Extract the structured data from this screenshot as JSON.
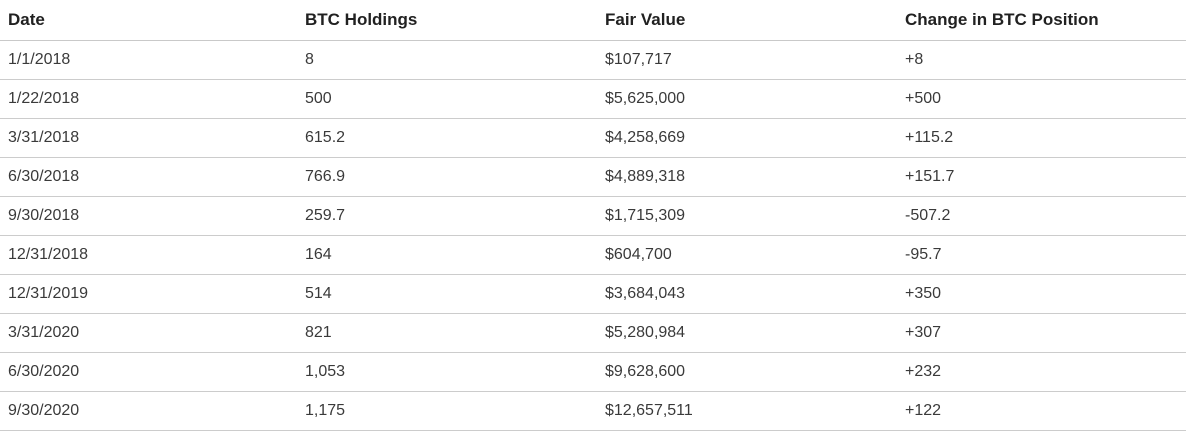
{
  "chart_data": {
    "type": "table",
    "columns": [
      "Date",
      "BTC Holdings",
      "Fair Value",
      "Change in BTC Position"
    ],
    "rows": [
      [
        "1/1/2018",
        "8",
        "$107,717",
        "+8"
      ],
      [
        "1/22/2018",
        "500",
        "$5,625,000",
        "+500"
      ],
      [
        "3/31/2018",
        "615.2",
        "$4,258,669",
        "+115.2"
      ],
      [
        "6/30/2018",
        "766.9",
        "$4,889,318",
        "+151.7"
      ],
      [
        "9/30/2018",
        "259.7",
        "$1,715,309",
        "-507.2"
      ],
      [
        "12/31/2018",
        "164",
        "$604,700",
        "-95.7"
      ],
      [
        "12/31/2019",
        "514",
        "$3,684,043",
        "+350"
      ],
      [
        "3/31/2020",
        "821",
        "$5,280,984",
        "+307"
      ],
      [
        "6/30/2020",
        "1,053",
        "$9,628,600",
        "+232"
      ],
      [
        "9/30/2020",
        "1,175",
        "$12,657,511",
        "+122"
      ]
    ]
  },
  "colors": {
    "background": "#ffffff",
    "header_text": "#212121",
    "cell_text": "#3a3a3a",
    "divider": "#cccccc"
  }
}
